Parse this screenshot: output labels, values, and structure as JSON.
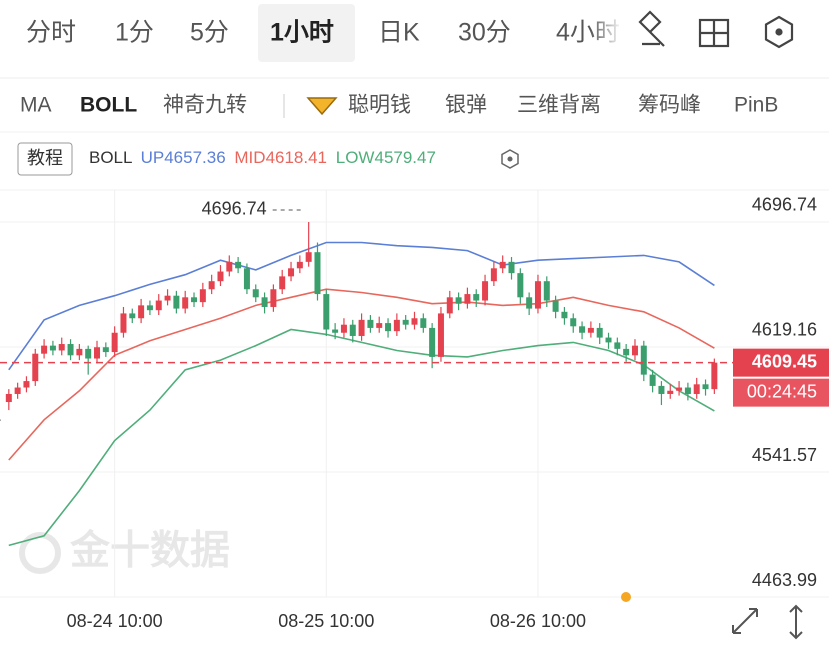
{
  "tabs": [
    "分时",
    "1分",
    "5分",
    "1小时",
    "日K",
    "30分",
    "4小时"
  ],
  "indicators": [
    "MA",
    "BOLL",
    "神奇九转",
    "聪明钱",
    "银弹",
    "三维背离",
    "筹码峰",
    "PinB"
  ],
  "tutorial": "教程",
  "watermark": "金十数据",
  "chart_data": {
    "type": "candlestick",
    "title": "BOLL",
    "xlim": [
      -1,
      93
    ],
    "ylim": [
      4463.99,
      4716.6
    ],
    "xticks": [
      {
        "value": 12,
        "label": "08-24 10:00"
      },
      {
        "value": 36,
        "label": "08-25 10:00"
      },
      {
        "value": 60,
        "label": "08-26 10:00"
      }
    ],
    "yticks": [
      4463.99,
      4541.57,
      4619.16,
      4696.74
    ],
    "grid": true,
    "up_color": "#e5424f",
    "down_color": "#3a9e6d",
    "countdown": "00:24:45",
    "candles": [
      [
        4585,
        4593,
        4580,
        4590
      ],
      [
        4590,
        4597,
        4587,
        4594
      ],
      [
        4594,
        4601,
        4591,
        4598
      ],
      [
        4598,
        4618,
        4595,
        4615
      ],
      [
        4615,
        4624,
        4612,
        4620
      ],
      [
        4620,
        4623,
        4614,
        4617
      ],
      [
        4617,
        4625,
        4614,
        4621
      ],
      [
        4621,
        4624,
        4611,
        4614
      ],
      [
        4614,
        4621,
        4611,
        4618
      ],
      [
        4618,
        4620,
        4602,
        4612
      ],
      [
        4612,
        4623,
        4609,
        4619
      ],
      [
        4619,
        4622,
        4613,
        4616
      ],
      [
        4616,
        4632,
        4613,
        4628
      ],
      [
        4628,
        4644,
        4625,
        4640
      ],
      [
        4640,
        4643,
        4634,
        4637
      ],
      [
        4637,
        4649,
        4634,
        4645
      ],
      [
        4645,
        4648,
        4639,
        4642
      ],
      [
        4642,
        4652,
        4639,
        4648
      ],
      [
        4648,
        4655,
        4645,
        4651
      ],
      [
        4651,
        4654,
        4640,
        4643
      ],
      [
        4643,
        4654,
        4640,
        4650
      ],
      [
        4650,
        4653,
        4644,
        4647
      ],
      [
        4647,
        4659,
        4644,
        4655
      ],
      [
        4655,
        4664,
        4652,
        4660
      ],
      [
        4660,
        4670,
        4657,
        4666
      ],
      [
        4666,
        4676,
        4663,
        4672
      ],
      [
        4672,
        4675,
        4665,
        4668
      ],
      [
        4668,
        4671,
        4652,
        4655
      ],
      [
        4655,
        4658,
        4647,
        4650
      ],
      [
        4650,
        4653,
        4640,
        4644
      ],
      [
        4644,
        4658,
        4641,
        4655
      ],
      [
        4655,
        4667,
        4652,
        4663
      ],
      [
        4663,
        4672,
        4660,
        4668
      ],
      [
        4668,
        4676,
        4665,
        4672
      ],
      [
        4672,
        4696.74,
        4669,
        4678
      ],
      [
        4678,
        4684,
        4648,
        4652
      ],
      [
        4652,
        4655,
        4626,
        4630
      ],
      [
        4630,
        4634,
        4624,
        4628
      ],
      [
        4628,
        4637,
        4625,
        4633
      ],
      [
        4633,
        4636,
        4622,
        4626
      ],
      [
        4626,
        4640,
        4623,
        4636
      ],
      [
        4636,
        4639,
        4628,
        4631
      ],
      [
        4631,
        4638,
        4628,
        4634
      ],
      [
        4634,
        4637,
        4625,
        4629
      ],
      [
        4629,
        4640,
        4626,
        4636
      ],
      [
        4636,
        4639,
        4630,
        4633
      ],
      [
        4633,
        4641,
        4630,
        4637
      ],
      [
        4637,
        4640,
        4628,
        4631
      ],
      [
        4631,
        4634,
        4606,
        4613
      ],
      [
        4613,
        4644,
        4610,
        4640
      ],
      [
        4640,
        4654,
        4637,
        4650
      ],
      [
        4650,
        4653,
        4642,
        4646
      ],
      [
        4646,
        4656,
        4643,
        4652
      ],
      [
        4652,
        4655,
        4644,
        4648
      ],
      [
        4648,
        4664,
        4645,
        4660
      ],
      [
        4660,
        4672,
        4657,
        4668
      ],
      [
        4668,
        4676,
        4665,
        4672
      ],
      [
        4672,
        4675,
        4661,
        4665
      ],
      [
        4665,
        4668,
        4646,
        4650
      ],
      [
        4650,
        4653,
        4639,
        4643
      ],
      [
        4643,
        4664,
        4640,
        4660
      ],
      [
        4660,
        4663,
        4644,
        4648
      ],
      [
        4648,
        4651,
        4637,
        4641
      ],
      [
        4641,
        4644,
        4633,
        4637
      ],
      [
        4637,
        4640,
        4628,
        4632
      ],
      [
        4632,
        4635,
        4624,
        4628
      ],
      [
        4628,
        4635,
        4625,
        4631
      ],
      [
        4631,
        4634,
        4621,
        4625
      ],
      [
        4625,
        4628,
        4618,
        4622
      ],
      [
        4622,
        4625,
        4614,
        4618
      ],
      [
        4618,
        4621,
        4610,
        4614
      ],
      [
        4614,
        4624,
        4611,
        4620
      ],
      [
        4620,
        4623,
        4598,
        4602
      ],
      [
        4602,
        4605,
        4591,
        4595
      ],
      [
        4595,
        4598,
        4583.13,
        4590
      ],
      [
        4590,
        4596,
        4587,
        4592
      ],
      [
        4592,
        4598,
        4589,
        4594
      ],
      [
        4594,
        4597,
        4586,
        4590
      ],
      [
        4590,
        4600,
        4587,
        4596
      ],
      [
        4596,
        4599,
        4589,
        4593
      ],
      [
        4593,
        4612,
        4590,
        4609.45
      ]
    ],
    "series": [
      {
        "name": "UP",
        "color": "#5b7fd6",
        "x": [
          0,
          4,
          8,
          12,
          16,
          20,
          24,
          28,
          32,
          36,
          40,
          44,
          48,
          52,
          56,
          60,
          64,
          68,
          72,
          76,
          80
        ],
        "values": [
          4605,
          4636,
          4645,
          4651,
          4658,
          4664,
          4673,
          4667,
          4676,
          4684,
          4684,
          4682,
          4681,
          4679,
          4670,
          4673,
          4674,
          4675,
          4676,
          4672,
          4657.36
        ]
      },
      {
        "name": "MID",
        "color": "#e8675d",
        "x": [
          0,
          4,
          8,
          12,
          16,
          20,
          24,
          28,
          32,
          36,
          40,
          44,
          48,
          52,
          56,
          60,
          64,
          68,
          72,
          76,
          80
        ],
        "values": [
          4549,
          4574,
          4592,
          4614,
          4623,
          4630,
          4637,
          4645,
          4650,
          4655,
          4653,
          4650,
          4646,
          4647,
          4645,
          4646,
          4650,
          4645,
          4641,
          4631,
          4618.41
        ]
      },
      {
        "name": "LOW",
        "color": "#4fae7a",
        "x": [
          0,
          4,
          8,
          12,
          16,
          20,
          24,
          28,
          32,
          36,
          40,
          44,
          48,
          52,
          56,
          60,
          64,
          68,
          72,
          76,
          80
        ],
        "values": [
          4496,
          4502,
          4530,
          4561,
          4580,
          4605,
          4611,
          4620,
          4630,
          4627,
          4622,
          4617,
          4614,
          4613,
          4617,
          4620,
          4622,
          4617,
          4608,
          4592,
          4579.47
        ]
      }
    ]
  }
}
